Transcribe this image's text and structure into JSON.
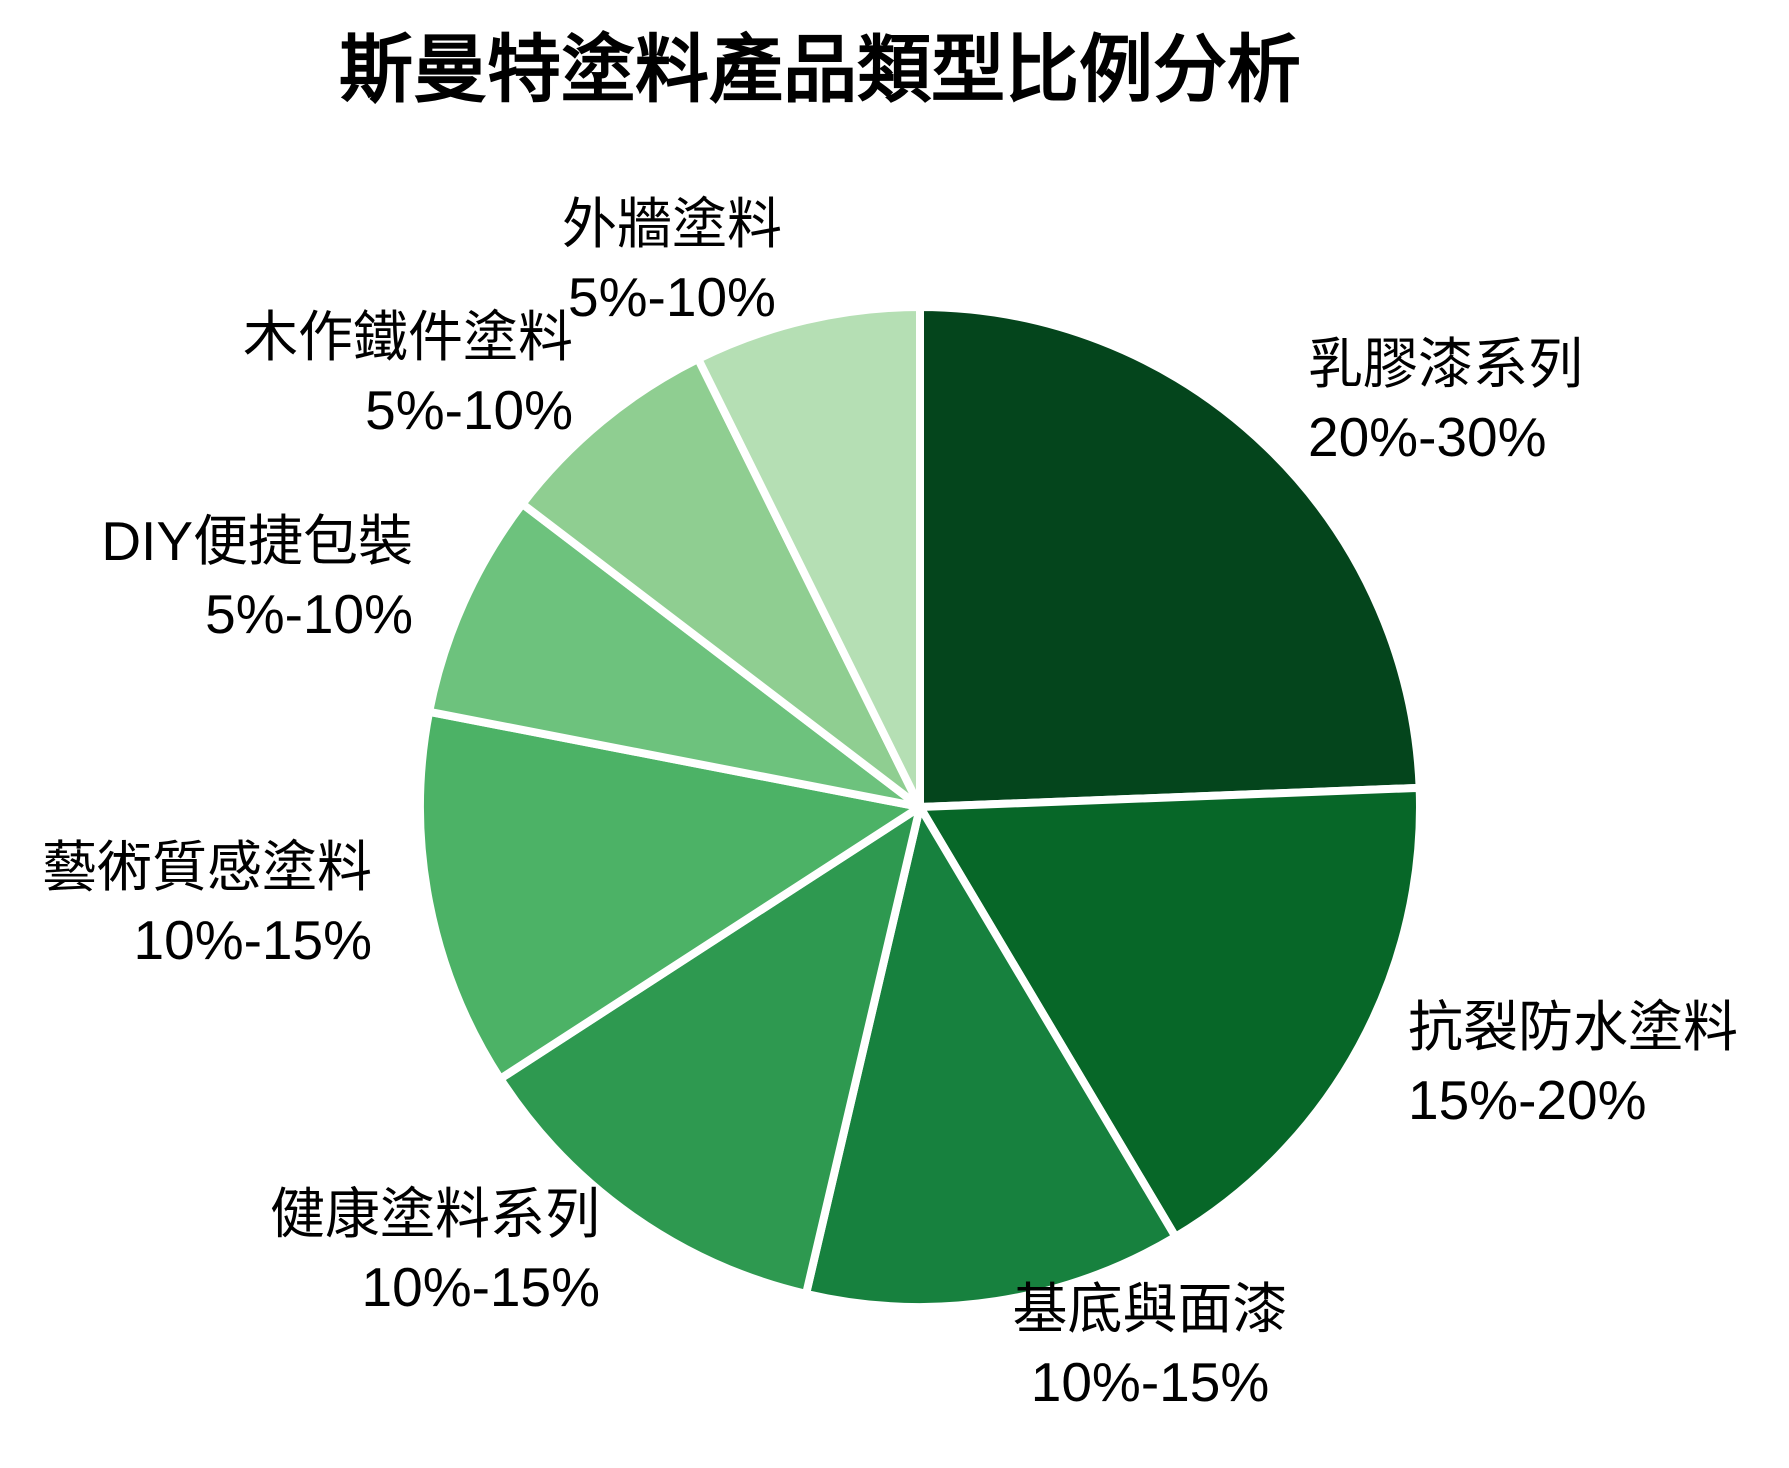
{
  "title": "斯曼特塗料產品類型比例分析",
  "chart_data": {
    "type": "pie",
    "title": "斯曼特塗料產品類型比例分析",
    "start_angle_deg": 0,
    "direction": "clockwise",
    "legend": "none",
    "label_style": "category name + percent range, outside slices",
    "slices": [
      {
        "label": "乳膠漆系列",
        "range": "20%-30%",
        "value": 25.0,
        "color": "#04451C"
      },
      {
        "label": "抗裂防水塗料",
        "range": "15%-20%",
        "value": 17.5,
        "color": "#076728"
      },
      {
        "label": "基底與面漆",
        "range": "10%-15%",
        "value": 12.5,
        "color": "#17813E"
      },
      {
        "label": "健康塗料系列",
        "range": "10%-15%",
        "value": 12.5,
        "color": "#2E9950"
      },
      {
        "label": "藝術質感塗料",
        "range": "10%-15%",
        "value": 12.5,
        "color": "#4CB266"
      },
      {
        "label": "DIY便捷包裝",
        "range": "5%-10%",
        "value": 7.5,
        "color": "#6DC27D"
      },
      {
        "label": "木作鐵件塗料",
        "range": "5%-10%",
        "value": 7.5,
        "color": "#8FCE91"
      },
      {
        "label": "外牆塗料",
        "range": "5%-10%",
        "value": 7.5,
        "color": "#B5DFB4"
      }
    ],
    "colors": {
      "background": "#FFFFFF",
      "slice_border": "#FFFFFF",
      "text": "#000000"
    }
  }
}
